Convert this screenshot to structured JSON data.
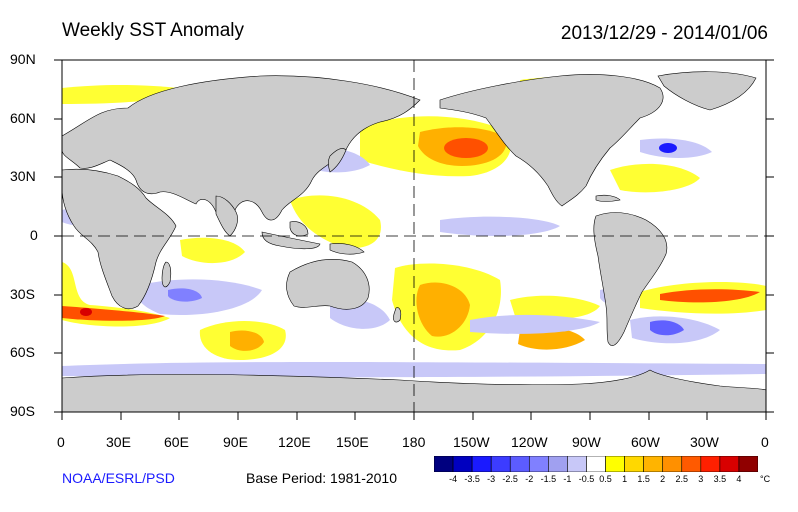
{
  "header": {
    "title": "Weekly SST Anomaly",
    "date_range": "2013/12/29 - 2014/01/06"
  },
  "footer": {
    "credit": "NOAA/ESRL/PSD",
    "base_period": "Base Period: 1981-2010"
  },
  "axes": {
    "lat_labels": [
      "90N",
      "60N",
      "30N",
      "0",
      "30S",
      "60S",
      "90S"
    ],
    "lon_labels": [
      "0",
      "30E",
      "60E",
      "90E",
      "120E",
      "150E",
      "180",
      "150W",
      "120W",
      "90W",
      "60W",
      "30W",
      "0"
    ]
  },
  "colorbar": {
    "tick_labels": [
      "-4",
      "-3.5",
      "-3",
      "-2.5",
      "-2",
      "-1.5",
      "-1",
      "-0.5",
      "0.5",
      "1",
      "1.5",
      "2",
      "2.5",
      "3",
      "3.5",
      "4"
    ],
    "unit": "°C",
    "colors": [
      "#00007f",
      "#0000c0",
      "#1a1aff",
      "#3c3cff",
      "#5c5cff",
      "#8080ff",
      "#a0a0f0",
      "#c8c8f8",
      "#ffffff",
      "#ffff00",
      "#ffd800",
      "#ffb400",
      "#ff9000",
      "#ff5a00",
      "#ff2000",
      "#d80000",
      "#900000"
    ]
  },
  "colors": {
    "land": "#cccccc",
    "ocean_neutral": "#ffffff",
    "warm_light": "#ffff33",
    "warm_mid": "#ffb000",
    "warm_strong": "#ff5000",
    "cool_light": "#c8c8f8",
    "cool_mid": "#6060ff",
    "credit": "#1a1aff"
  }
}
